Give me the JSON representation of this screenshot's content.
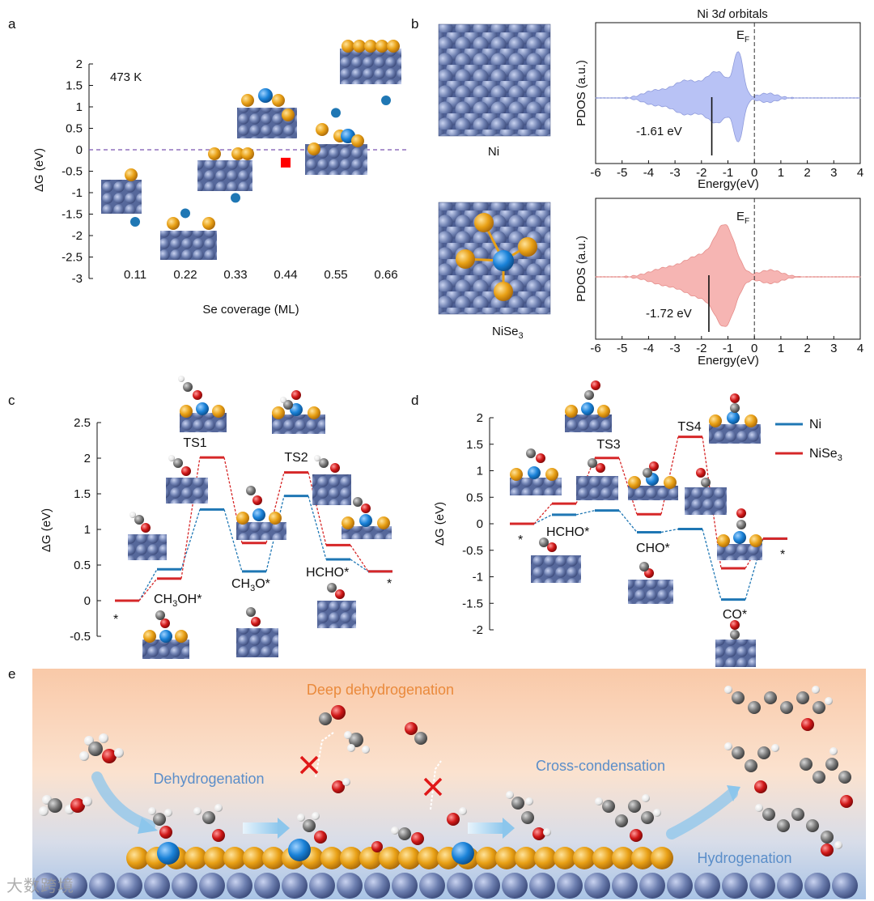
{
  "panels": {
    "a": "a",
    "b": "b",
    "c": "c",
    "d": "d",
    "e": "e"
  },
  "colors": {
    "ni_blue": "#1f77b4",
    "nise3_red": "#d62728",
    "marker_red": "#ff0000",
    "pdos_blue": "#b8c2f5",
    "pdos_red": "#f6b5b3",
    "se_gold": "#e8a015",
    "ni_atom": "#6d7fb0",
    "o_red": "#d01818",
    "c_gray": "#7a7a7a"
  },
  "chart_data": [
    {
      "id": "a",
      "type": "scatter",
      "annotation": "473 K",
      "xlabel": "Se coverage (ML)",
      "ylabel": "ΔG (eV)",
      "categories": [
        "0.11",
        "0.22",
        "0.33",
        "0.44",
        "0.55",
        "0.66"
      ],
      "ylim": [
        -3,
        2
      ],
      "yticks": [
        "2",
        "1.5",
        "1",
        "0.5",
        "0",
        "-0.5",
        "-1",
        "-1.5",
        "-2",
        "-2.5",
        "-3"
      ],
      "points_circle": [
        {
          "x": 0.11,
          "y": -1.68
        },
        {
          "x": 0.22,
          "y": -1.48
        },
        {
          "x": 0.33,
          "y": -1.12
        },
        {
          "x": 0.55,
          "y": 0.86
        },
        {
          "x": 0.66,
          "y": 1.15
        }
      ],
      "points_square": [
        {
          "x": 0.44,
          "y": -0.3
        }
      ],
      "reference_line": 0
    },
    {
      "id": "b-ni",
      "type": "area",
      "title_main": "Ni 3",
      "title_italic": "d",
      "title_rest": " orbitals",
      "xlabel": "Energy(eV)",
      "ylabel": "PDOS (a.u.)",
      "xlim": [
        -6,
        4
      ],
      "xticks": [
        "-6",
        "-5",
        "-4",
        "-3",
        "-2",
        "-1",
        "0",
        "1",
        "2",
        "3",
        "4"
      ],
      "fermi_label": "E",
      "fermi_sub": "F",
      "center_label": "-1.61 eV",
      "d_band_center": -1.61,
      "structure_label": "Ni"
    },
    {
      "id": "b-nise3",
      "type": "area",
      "xlabel": "Energy(eV)",
      "ylabel": "PDOS (a.u.)",
      "xlim": [
        -6,
        4
      ],
      "xticks": [
        "-6",
        "-5",
        "-4",
        "-3",
        "-2",
        "-1",
        "0",
        "1",
        "2",
        "3",
        "4"
      ],
      "fermi_label": "E",
      "fermi_sub": "F",
      "center_label": "-1.72 eV",
      "d_band_center": -1.72,
      "structure_label_main": "NiSe",
      "structure_label_sub": "3"
    },
    {
      "id": "c",
      "type": "line",
      "ylabel": "ΔG (eV)",
      "ylim": [
        -0.5,
        2.5
      ],
      "yticks": [
        "2.5",
        "2",
        "1.5",
        "1",
        "0.5",
        "0",
        "-0.5"
      ],
      "states": [
        "*",
        "CH3OH*",
        "TS1",
        "CH3O*",
        "TS2",
        "HCHO*",
        "*"
      ],
      "state_labels": {
        "start": "*",
        "ch3oh_a": "CH",
        "ch3oh_sub": "3",
        "ch3oh_b": "OH*",
        "ts1": "TS1",
        "ch3o_a": "CH",
        "ch3o_sub": "3",
        "ch3o_b": "O*",
        "ts2": "TS2",
        "hcho": "HCHO*",
        "end": "*"
      },
      "series": [
        {
          "name": "Ni",
          "values": [
            0.0,
            0.44,
            1.28,
            0.41,
            1.47,
            0.58,
            0.41
          ]
        },
        {
          "name": "NiSe3",
          "values": [
            0.0,
            0.31,
            2.01,
            0.81,
            1.8,
            0.78,
            0.41
          ]
        }
      ]
    },
    {
      "id": "d",
      "type": "line",
      "ylabel": "ΔG (eV)",
      "ylim": [
        -2,
        2
      ],
      "yticks": [
        "2",
        "1.5",
        "1",
        "0.5",
        "0",
        "-0.5",
        "-1",
        "-1.5",
        "-2"
      ],
      "states": [
        "*",
        "HCHO*",
        "TS3",
        "CHO*",
        "TS4",
        "CO*",
        "*"
      ],
      "state_labels": {
        "start": "*",
        "hcho": "HCHO*",
        "ts3": "TS3",
        "cho": "CHO*",
        "ts4": "TS4",
        "co": "CO*",
        "end": "*"
      },
      "legend": {
        "ni": "Ni",
        "nise3_main": "NiSe",
        "nise3_sub": "3"
      },
      "series": [
        {
          "name": "Ni",
          "values": [
            0.0,
            0.17,
            0.25,
            -0.16,
            -0.1,
            -1.43,
            -0.28
          ]
        },
        {
          "name": "NiSe3",
          "values": [
            0.0,
            0.38,
            1.24,
            0.18,
            1.64,
            -0.84,
            -0.28
          ]
        }
      ]
    }
  ],
  "scheme": {
    "deep": "Deep dehydrogenation",
    "dehydrogenation": "Dehydrogenation",
    "cross": "Cross-condensation",
    "hydrogenation": "Hydrogenation"
  },
  "watermark": "大数跨境"
}
